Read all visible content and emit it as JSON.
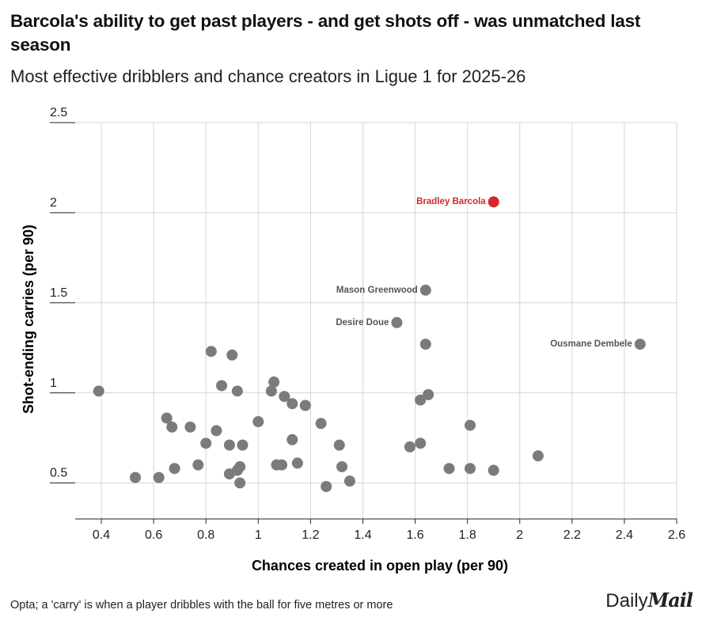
{
  "chart_data": {
    "type": "scatter",
    "title": "Barcola's ability to get past players - and get shots off - was unmatched last season",
    "subtitle": "Most effective dribblers and chance creators in Ligue 1 for 2025-26",
    "x_label": "Chances created in open play (per 90)",
    "y_label": "Shot-ending carries (per 90)",
    "source": "Opta; a 'carry' is when a player dribbles with the ball for five metres or more",
    "logo": {
      "left": "Daily",
      "right": "Mail"
    },
    "xlim": [
      0.3,
      2.6
    ],
    "xticks": [
      0.4,
      0.6,
      0.8,
      1,
      1.2,
      1.4,
      1.6,
      1.8,
      2,
      2.2,
      2.4,
      2.6
    ],
    "ylim": [
      0.3,
      2.5
    ],
    "yticks": [
      0.5,
      1,
      1.5,
      2,
      2.5
    ],
    "grid": true,
    "color": "#7b7b7b",
    "x": [
      0.39,
      0.53,
      0.62,
      0.65,
      0.67,
      0.68,
      0.74,
      0.77,
      0.8,
      0.82,
      0.84,
      0.86,
      0.89,
      0.89,
      0.9,
      0.92,
      0.92,
      0.93,
      0.93,
      0.94,
      1.0,
      1.06,
      1.05,
      1.07,
      1.09,
      1.1,
      1.13,
      1.13,
      1.15,
      1.18,
      1.24,
      1.26,
      1.31,
      1.32,
      1.35,
      1.53,
      1.58,
      1.62,
      1.62,
      1.64,
      1.64,
      1.65,
      1.73,
      1.81,
      1.81,
      1.9,
      1.9,
      2.07,
      2.46
    ],
    "y": [
      1.01,
      0.53,
      0.53,
      0.86,
      0.81,
      0.58,
      0.81,
      0.6,
      0.72,
      1.23,
      0.79,
      1.04,
      0.71,
      0.55,
      1.21,
      1.01,
      0.57,
      0.59,
      0.5,
      0.71,
      0.84,
      1.06,
      1.01,
      0.6,
      0.6,
      0.98,
      0.94,
      0.74,
      0.61,
      0.93,
      0.83,
      0.48,
      0.71,
      0.59,
      0.51,
      1.39,
      0.7,
      0.72,
      0.96,
      1.57,
      1.27,
      0.99,
      0.58,
      0.58,
      0.82,
      2.06,
      0.57,
      0.65,
      1.27
    ],
    "labels": [
      null,
      null,
      null,
      null,
      null,
      null,
      null,
      null,
      null,
      null,
      null,
      null,
      null,
      null,
      null,
      null,
      null,
      null,
      null,
      null,
      null,
      null,
      null,
      null,
      null,
      null,
      null,
      null,
      null,
      null,
      null,
      null,
      null,
      null,
      null,
      "Desire Doue",
      null,
      null,
      null,
      "Mason Greenwood",
      null,
      null,
      null,
      null,
      null,
      "Bradley Barcola",
      null,
      null,
      "Ousmane Dembele"
    ],
    "highlight": {
      "label": "Bradley Barcola",
      "color": "#d3292d"
    }
  }
}
